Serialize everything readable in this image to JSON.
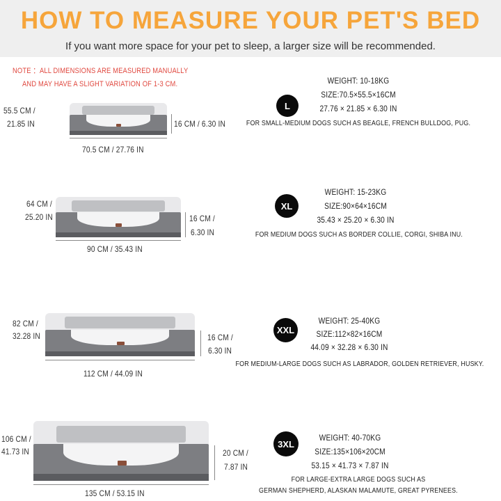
{
  "header": {
    "title": "HOW TO MEASURE YOUR PET'S BED",
    "subtitle": "If you want more space for your pet to sleep, a larger size will be recommended."
  },
  "note": {
    "line1": "NOTE  ：ALL DIMENSIONS ARE MEASURED MANUALLY",
    "line2": "AND MAY HAVE A SLIGHT VARIATION OF 1-3 CM."
  },
  "colors": {
    "title": "#f6a53b",
    "note": "#e0483f",
    "badge": "#0a0a0a",
    "bed_base": "#7d7e82"
  },
  "sizes": [
    {
      "badge": "L",
      "depth_cm": "55.5 CM /",
      "depth_in": "21.85 IN",
      "height": "16 CM / 6.30 IN",
      "width": "70.5 CM / 27.76 IN",
      "weight": "WEIGHT: 10-18KG",
      "size": "SIZE:70.5×55.5×16CM",
      "inches": "27.76 × 21.85 × 6.30 IN",
      "dogs": "FOR SMALL-MEDIUM DOGS SUCH AS BEAGLE, FRENCH BULLDOG, PUG."
    },
    {
      "badge": "XL",
      "depth_cm": "64 CM /",
      "depth_in": "25.20 IN",
      "height_cm": "16 CM /",
      "height_in": "6.30 IN",
      "width": "90 CM / 35.43 IN",
      "weight": "WEIGHT: 15-23KG",
      "size": "SIZE:90×64×16CM",
      "inches": "35.43 × 25.20 × 6.30 IN",
      "dogs": "FOR MEDIUM DOGS SUCH AS BORDER COLLIE, CORGI, SHIBA INU."
    },
    {
      "badge": "XXL",
      "depth_cm": "82 CM /",
      "depth_in": "32.28 IN",
      "height_cm": "16 CM /",
      "height_in": "6.30 IN",
      "width": "112 CM / 44.09 IN",
      "weight": "WEIGHT: 25-40KG",
      "size": "SIZE:112×82×16CM",
      "inches": "44.09 × 32.28 × 6.30 IN",
      "dogs": "FOR MEDIUM-LARGE DOGS SUCH AS LABRADOR, GOLDEN RETRIEVER, HUSKY."
    },
    {
      "badge": "3XL",
      "depth_cm": "106 CM /",
      "depth_in": "41.73 IN",
      "height_cm": "20 CM /",
      "height_in": "7.87 IN",
      "width": "135 CM / 53.15 IN",
      "weight": "WEIGHT: 40-70KG",
      "size": "SIZE:135×106×20CM",
      "inches": "53.15 × 41.73 × 7.87 IN",
      "dogs": "FOR LARGE-EXTRA LARGE DOGS SUCH AS",
      "dogs2": "GERMAN SHEPHERD, ALASKAN MALAMUTE, GREAT PYRENEES."
    }
  ]
}
